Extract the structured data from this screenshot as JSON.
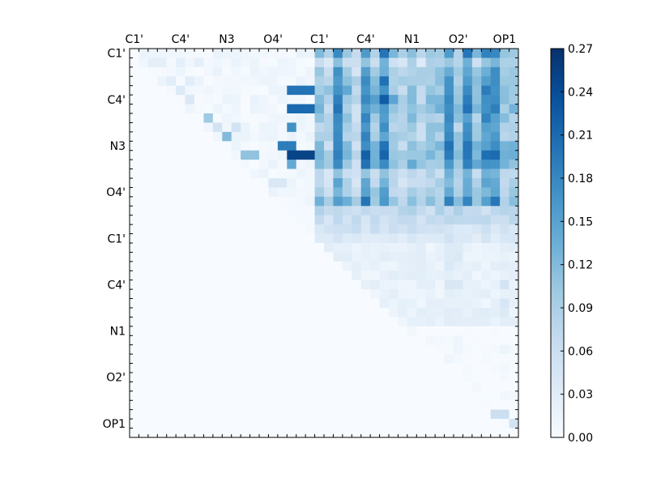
{
  "chart_data": {
    "type": "heatmap",
    "n": 42,
    "row_labels": [
      "C1'",
      "C4'",
      "N3",
      "O4'",
      "C1'",
      "C4'",
      "N1",
      "O2'",
      "OP1"
    ],
    "col_labels": [
      "C1'",
      "C4'",
      "N3",
      "O4'",
      "C1'",
      "C4'",
      "N1",
      "O2'",
      "OP1"
    ],
    "label_indices": [
      0,
      5,
      10,
      15,
      20,
      25,
      30,
      35,
      40
    ],
    "vmin": 0.0,
    "vmax": 0.27,
    "colorbar_ticks": [
      "0.00",
      "0.03",
      "0.06",
      "0.09",
      "0.12",
      "0.15",
      "0.18",
      "0.21",
      "0.24",
      "0.27"
    ],
    "colormap": [
      "#f7fbff",
      "#deebf7",
      "#c6dbef",
      "#9ecae1",
      "#6baed6",
      "#4292c6",
      "#2171b5",
      "#08519c",
      "#08306b"
    ],
    "values": {
      "upper_left": 0.012,
      "ul_bands": [
        {
          "row": 1,
          "cols": [
            2,
            3,
            5,
            7
          ],
          "v": 0.025
        },
        {
          "row": 3,
          "cols": [
            4,
            6
          ],
          "v": 0.03
        },
        {
          "row": 4,
          "cols": [
            5
          ],
          "v": 0.035
        },
        {
          "row": 5,
          "cols": [
            6
          ],
          "v": 0.04
        },
        {
          "row": 7,
          "cols": [
            8
          ],
          "v": 0.1
        },
        {
          "row": 8,
          "cols": [
            9,
            11
          ],
          "v": 0.05
        },
        {
          "row": 9,
          "cols": [
            10
          ],
          "v": 0.12
        },
        {
          "row": 11,
          "cols": [
            12,
            13
          ],
          "v": 0.11
        },
        {
          "row": 14,
          "cols": [
            15,
            16
          ],
          "v": 0.04
        }
      ],
      "strong_cells": [
        {
          "row": 4,
          "cols": [
            17,
            18,
            19
          ],
          "v": 0.2
        },
        {
          "row": 6,
          "cols": [
            17,
            18,
            19
          ],
          "v": 0.21
        },
        {
          "row": 8,
          "cols": [
            17
          ],
          "v": 0.17
        },
        {
          "row": 10,
          "cols": [
            16,
            17
          ],
          "v": 0.19
        },
        {
          "row": 11,
          "cols": [
            17,
            18,
            19
          ],
          "v": 0.25
        },
        {
          "row": 12,
          "cols": [
            17
          ],
          "v": 0.14
        }
      ],
      "upper_right_rows": [
        0.15,
        0.1,
        0.13,
        0.15,
        0.16,
        0.17,
        0.15,
        0.14,
        0.13,
        0.14,
        0.15,
        0.17,
        0.16,
        0.1,
        0.11,
        0.12,
        0.15
      ],
      "upper_right_strong_cols": [
        22,
        25,
        27,
        34,
        36,
        38,
        39
      ],
      "upper_right_weak_cols": [
        21,
        24,
        29,
        31
      ],
      "lower_mid_rows": [
        0.07,
        0.06,
        0.05,
        0.04
      ],
      "lower_right": 0.025,
      "lower_right_strong_cols": [
        34,
        35,
        40
      ],
      "bottom_right_extra": [
        {
          "row": 39,
          "cols": [
            39,
            40
          ],
          "v": 0.06
        },
        {
          "row": 40,
          "cols": [
            41
          ],
          "v": 0.05
        }
      ]
    }
  }
}
